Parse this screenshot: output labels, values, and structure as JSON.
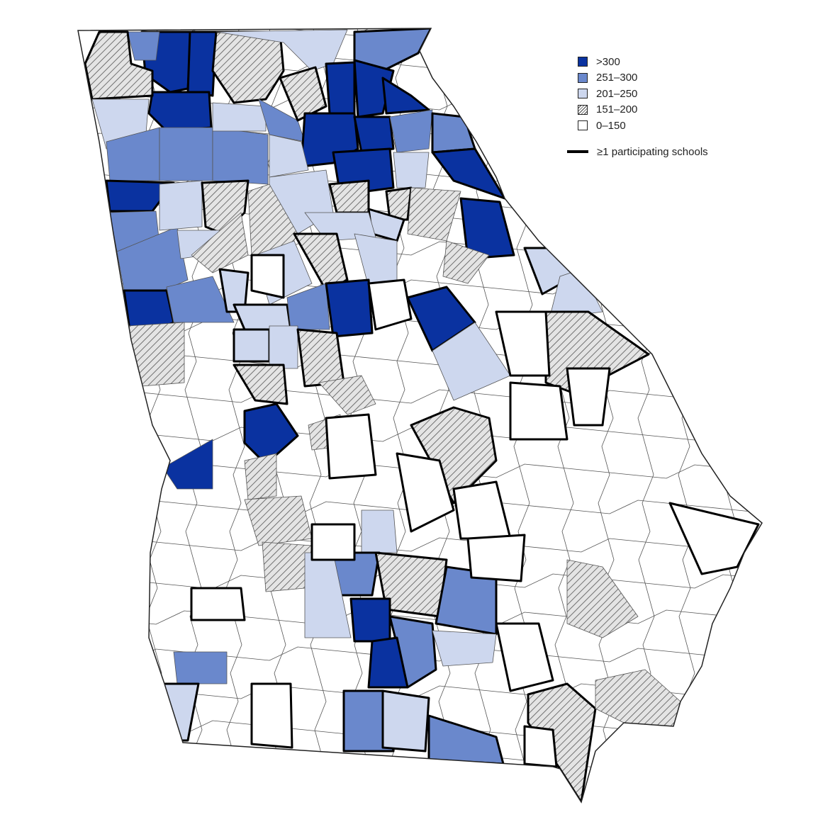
{
  "legend": {
    "items": [
      {
        "label": ">300",
        "color": "#0a32a0",
        "pattern": "solid"
      },
      {
        "label": "251–300",
        "color": "#6a88cc",
        "pattern": "solid"
      },
      {
        "label": "201–250",
        "color": "#cdd7ee",
        "pattern": "solid"
      },
      {
        "label": "151–200",
        "color": "#d9d9d9",
        "pattern": "hatched"
      },
      {
        "label": "0–150",
        "color": "#ffffff",
        "pattern": "solid"
      }
    ],
    "boundary_label": "≥1 participating schools",
    "boundary_color": "#000000"
  }
}
